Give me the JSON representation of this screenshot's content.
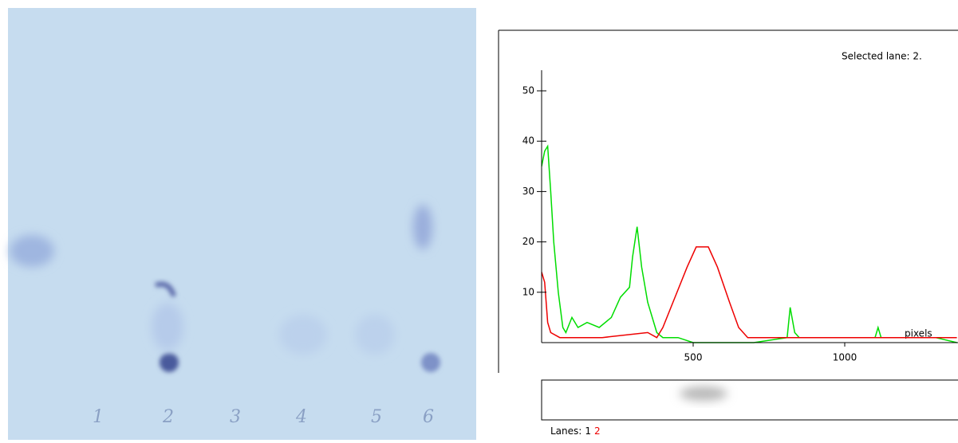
{
  "plate": {
    "lane_labels": [
      "1",
      "2",
      "3",
      "4",
      "5",
      "6"
    ]
  },
  "chart_data": {
    "type": "line",
    "selected_text": "Selected lane: 2.",
    "x_label": "pixels",
    "legend_title": "Lanes:",
    "xlim": [
      0,
      1370
    ],
    "ylim": [
      0,
      62
    ],
    "xticks": [
      500,
      1000
    ],
    "yticks": [
      10,
      20,
      30,
      40,
      50
    ],
    "series": [
      {
        "name": "1",
        "color": "#00dd00",
        "label_color": "#000000",
        "x": [
          0,
          10,
          20,
          30,
          40,
          55,
          70,
          80,
          100,
          120,
          150,
          190,
          230,
          260,
          290,
          300,
          315,
          330,
          350,
          380,
          400,
          450,
          500,
          700,
          810,
          820,
          835,
          850,
          1000,
          1100,
          1110,
          1120,
          1300,
          1370
        ],
        "values": [
          35,
          38,
          39,
          30,
          20,
          10,
          3,
          2,
          5,
          3,
          4,
          3,
          5,
          9,
          11,
          17,
          23,
          15,
          8,
          2,
          1,
          1,
          0,
          0,
          1,
          7,
          2,
          1,
          1,
          1,
          3,
          1,
          1,
          0
        ]
      },
      {
        "name": "2",
        "color": "#ee0000",
        "label_color": "#ee0000",
        "x": [
          0,
          10,
          20,
          30,
          60,
          200,
          350,
          380,
          400,
          440,
          480,
          510,
          550,
          580,
          620,
          650,
          680,
          700,
          1370
        ],
        "values": [
          14,
          12,
          4,
          2,
          1,
          1,
          2,
          1,
          3,
          9,
          15,
          19,
          19,
          15,
          8,
          3,
          1,
          1,
          1
        ]
      }
    ]
  }
}
